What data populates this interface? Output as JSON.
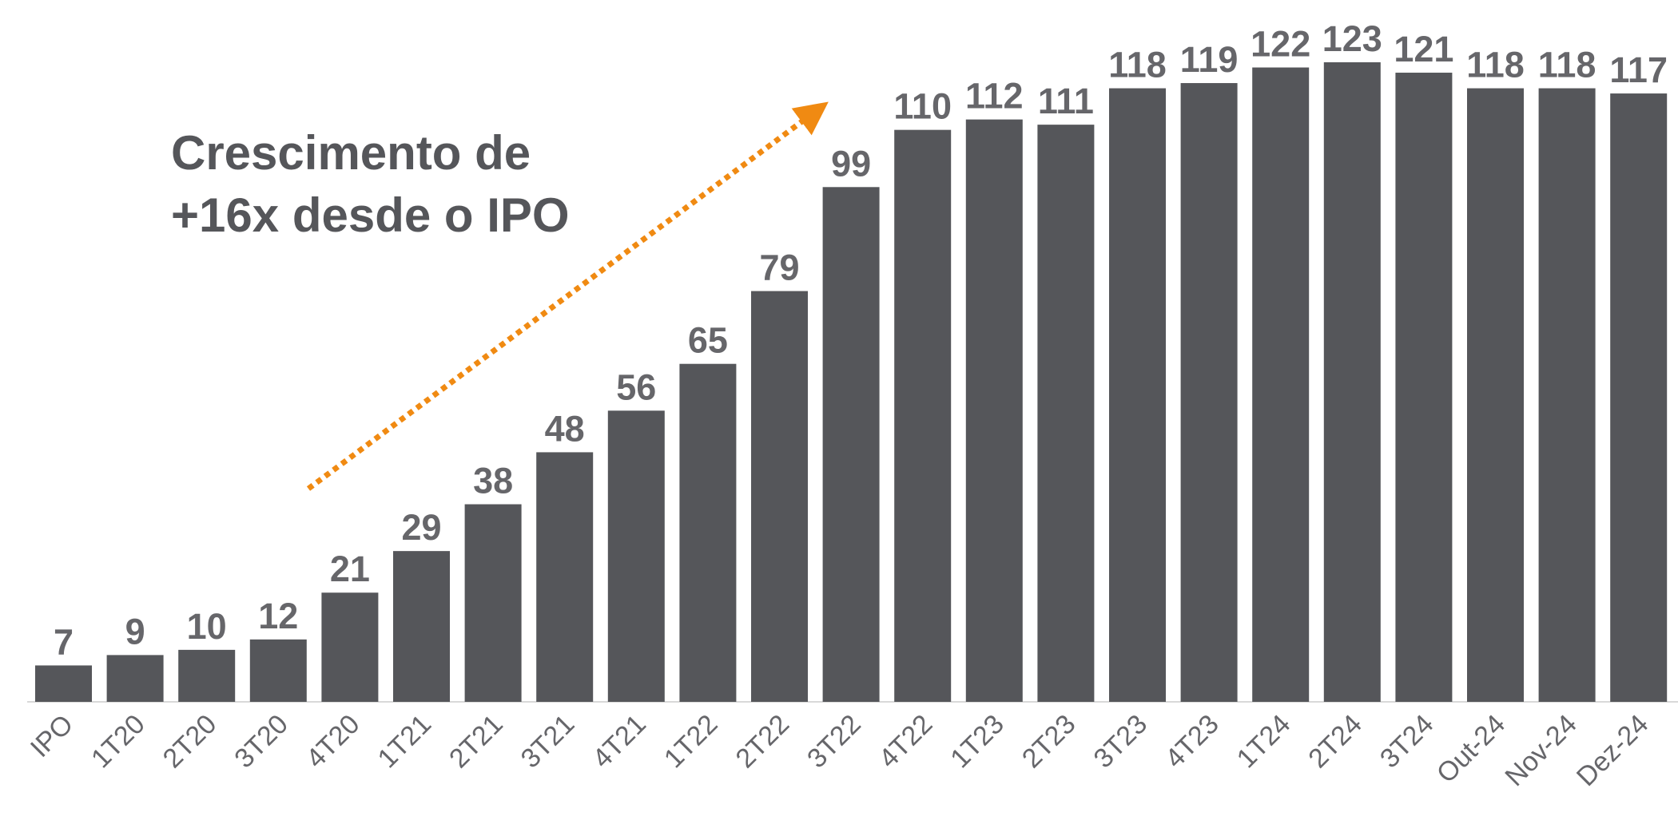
{
  "chart_data": {
    "type": "bar",
    "annotation": [
      "Crescimento de",
      "+16x desde o IPO"
    ],
    "categories": [
      "IPO",
      "1T20",
      "2T20",
      "3T20",
      "4T20",
      "1T21",
      "2T21",
      "3T21",
      "4T21",
      "1T22",
      "2T22",
      "3T22",
      "4T22",
      "1T23",
      "2T23",
      "3T23",
      "4T23",
      "1T24",
      "2T24",
      "3T24",
      "Out-24",
      "Nov-24",
      "Dez-24"
    ],
    "values": [
      7,
      9,
      10,
      12,
      21,
      29,
      38,
      48,
      56,
      65,
      79,
      99,
      110,
      112,
      111,
      118,
      119,
      122,
      123,
      121,
      118,
      118,
      117
    ],
    "color": "#55565a"
  }
}
